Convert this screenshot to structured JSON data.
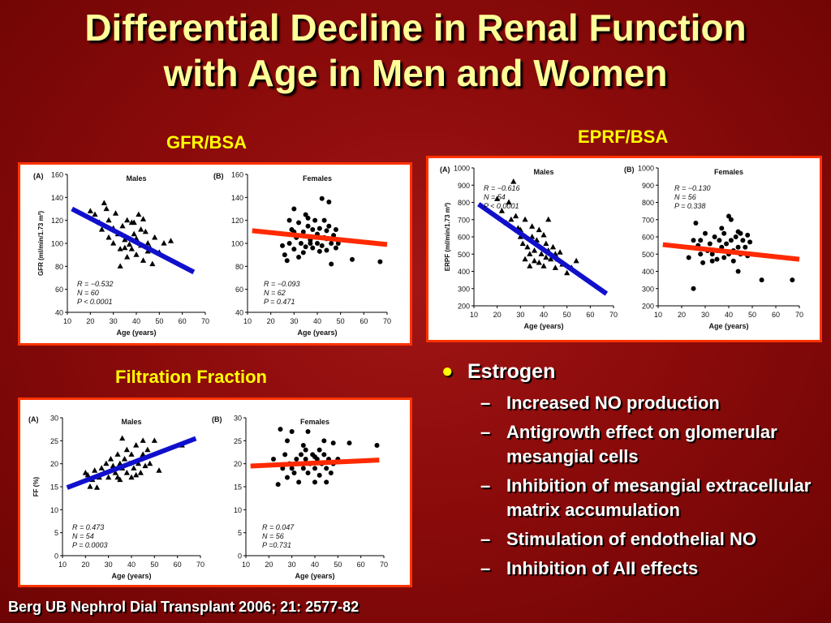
{
  "slide": {
    "title_line1": "Differential Decline in Renal Function",
    "title_line2": "with Age in Men and Women",
    "gfr_label": "GFR/BSA",
    "eprf_label": "EPRF/BSA",
    "ff_label": "Filtration Fraction",
    "citation": "Berg UB Nephrol Dial Transplant 2006; 21: 2577-82"
  },
  "bullets": {
    "main": "Estrogen",
    "subs": [
      "Increased NO production",
      "Antigrowth effect on glomerular mesangial cells",
      "Inhibition of mesangial extracellular matrix accumulation",
      "Stimulation of endothelial NO",
      "Inhibition of AII effects"
    ]
  },
  "colors": {
    "male_fit": "#1010cc",
    "female_fit": "#ff2a00",
    "accent": "#ffff00",
    "border": "#ff3300"
  },
  "chart_data": [
    {
      "type": "scatter",
      "panel": "(A)",
      "title": "Males",
      "marker": "triangle",
      "xlabel": "Age (years)",
      "ylabel": "GFR (ml/min/1.73 m²)",
      "xlim": [
        10,
        70
      ],
      "ylim": [
        40,
        160
      ],
      "xticks": [
        10,
        20,
        30,
        40,
        50,
        60,
        70
      ],
      "yticks": [
        40,
        60,
        80,
        100,
        120,
        140,
        160
      ],
      "stats": [
        "R = −0.532",
        "N = 60",
        "P < 0.0001"
      ],
      "fit": {
        "x": [
          12,
          65
        ],
        "y": [
          130,
          75
        ]
      },
      "points": [
        [
          20,
          128
        ],
        [
          22,
          125
        ],
        [
          24,
          118
        ],
        [
          25,
          112
        ],
        [
          26,
          135
        ],
        [
          27,
          130
        ],
        [
          28,
          120
        ],
        [
          28,
          105
        ],
        [
          30,
          113
        ],
        [
          30,
          100
        ],
        [
          31,
          126
        ],
        [
          32,
          108
        ],
        [
          33,
          95
        ],
        [
          33,
          80
        ],
        [
          34,
          115
        ],
        [
          35,
          103
        ],
        [
          36,
          120
        ],
        [
          36,
          88
        ],
        [
          37,
          99
        ],
        [
          38,
          118
        ],
        [
          38,
          95
        ],
        [
          39,
          108
        ],
        [
          40,
          90
        ],
        [
          40,
          104
        ],
        [
          41,
          125
        ],
        [
          42,
          98
        ],
        [
          43,
          121
        ],
        [
          43,
          85
        ],
        [
          44,
          110
        ],
        [
          45,
          100
        ],
        [
          45,
          93
        ],
        [
          46,
          96
        ],
        [
          47,
          82
        ],
        [
          48,
          105
        ],
        [
          50,
          92
        ],
        [
          52,
          100
        ],
        [
          55,
          102
        ],
        [
          35,
          96
        ],
        [
          39,
          118
        ],
        [
          42,
          112
        ]
      ]
    },
    {
      "type": "scatter",
      "panel": "(B)",
      "title": "Females",
      "marker": "circle",
      "xlabel": "Age (years)",
      "xlim": [
        10,
        70
      ],
      "ylim": [
        40,
        160
      ],
      "xticks": [
        10,
        20,
        30,
        40,
        50,
        60,
        70
      ],
      "yticks": [
        40,
        60,
        80,
        100,
        120,
        140,
        160
      ],
      "stats": [
        "R = −0.093",
        "N = 62",
        "P = 0.471"
      ],
      "fit": {
        "x": [
          12,
          70
        ],
        "y": [
          111,
          99
        ]
      },
      "points": [
        [
          25,
          98
        ],
        [
          26,
          90
        ],
        [
          27,
          85
        ],
        [
          28,
          100
        ],
        [
          28,
          120
        ],
        [
          29,
          112
        ],
        [
          30,
          95
        ],
        [
          30,
          130
        ],
        [
          31,
          105
        ],
        [
          32,
          118
        ],
        [
          32,
          88
        ],
        [
          33,
          100
        ],
        [
          34,
          110
        ],
        [
          34,
          92
        ],
        [
          35,
          125
        ],
        [
          35,
          97
        ],
        [
          36,
          115
        ],
        [
          37,
          103
        ],
        [
          37,
          100
        ],
        [
          38,
          112
        ],
        [
          38,
          96
        ],
        [
          39,
          120
        ],
        [
          40,
          108
        ],
        [
          40,
          100
        ],
        [
          41,
          113
        ],
        [
          41,
          93
        ],
        [
          42,
          139
        ],
        [
          42,
          98
        ],
        [
          43,
          120
        ],
        [
          43,
          105
        ],
        [
          44,
          111
        ],
        [
          44,
          94
        ],
        [
          45,
          115
        ],
        [
          45,
          136
        ],
        [
          46,
          100
        ],
        [
          46,
          82
        ],
        [
          47,
          107
        ],
        [
          48,
          112
        ],
        [
          48,
          96
        ],
        [
          49,
          100
        ],
        [
          55,
          86
        ],
        [
          67,
          84
        ],
        [
          30,
          110
        ],
        [
          36,
          122
        ],
        [
          44,
          104
        ]
      ]
    },
    {
      "type": "scatter",
      "panel": "(A)",
      "title": "Males",
      "marker": "triangle",
      "xlabel": "Age (years)",
      "ylabel": "ERPF (ml/min/1.73 m²)",
      "xlim": [
        10,
        70
      ],
      "ylim": [
        200,
        1000
      ],
      "xticks": [
        10,
        20,
        30,
        40,
        50,
        60,
        70
      ],
      "yticks": [
        200,
        300,
        400,
        500,
        600,
        700,
        800,
        900,
        1000
      ],
      "stats": [
        "R = −0.616",
        "N = 54",
        "P < 0.0001"
      ],
      "fit": {
        "x": [
          12,
          67
        ],
        "y": [
          790,
          270
        ]
      },
      "points": [
        [
          20,
          820
        ],
        [
          22,
          750
        ],
        [
          24,
          680
        ],
        [
          25,
          800
        ],
        [
          27,
          920
        ],
        [
          28,
          720
        ],
        [
          29,
          650
        ],
        [
          30,
          600
        ],
        [
          31,
          560
        ],
        [
          32,
          700
        ],
        [
          32,
          470
        ],
        [
          33,
          540
        ],
        [
          34,
          500
        ],
        [
          34,
          430
        ],
        [
          35,
          600
        ],
        [
          36,
          520
        ],
        [
          36,
          460
        ],
        [
          37,
          580
        ],
        [
          38,
          640
        ],
        [
          38,
          450
        ],
        [
          39,
          500
        ],
        [
          40,
          610
        ],
        [
          40,
          430
        ],
        [
          41,
          560
        ],
        [
          41,
          480
        ],
        [
          42,
          700
        ],
        [
          42,
          520
        ],
        [
          43,
          470
        ],
        [
          44,
          540
        ],
        [
          45,
          500
        ],
        [
          45,
          420
        ],
        [
          46,
          470
        ],
        [
          47,
          510
        ],
        [
          48,
          440
        ],
        [
          50,
          390
        ],
        [
          52,
          420
        ],
        [
          54,
          460
        ],
        [
          30,
          640
        ],
        [
          26,
          700
        ],
        [
          35,
          660
        ]
      ]
    },
    {
      "type": "scatter",
      "panel": "(B)",
      "title": "Females",
      "marker": "circle",
      "xlabel": "Age (years)",
      "xlim": [
        10,
        70
      ],
      "ylim": [
        200,
        1000
      ],
      "xticks": [
        10,
        20,
        30,
        40,
        50,
        60,
        70
      ],
      "yticks": [
        200,
        300,
        400,
        500,
        600,
        700,
        800,
        900,
        1000
      ],
      "stats": [
        "R = −0.130",
        "N = 56",
        "P = 0.338"
      ],
      "fit": {
        "x": [
          12,
          70
        ],
        "y": [
          555,
          470
        ]
      },
      "points": [
        [
          23,
          480
        ],
        [
          25,
          300
        ],
        [
          25,
          580
        ],
        [
          26,
          680
        ],
        [
          27,
          550
        ],
        [
          28,
          500
        ],
        [
          28,
          580
        ],
        [
          29,
          450
        ],
        [
          30,
          620
        ],
        [
          31,
          520
        ],
        [
          32,
          560
        ],
        [
          33,
          500
        ],
        [
          33,
          460
        ],
        [
          34,
          600
        ],
        [
          35,
          520
        ],
        [
          35,
          470
        ],
        [
          36,
          580
        ],
        [
          37,
          540
        ],
        [
          38,
          480
        ],
        [
          38,
          620
        ],
        [
          39,
          560
        ],
        [
          40,
          500
        ],
        [
          40,
          720
        ],
        [
          41,
          700
        ],
        [
          41,
          580
        ],
        [
          42,
          520
        ],
        [
          42,
          460
        ],
        [
          43,
          600
        ],
        [
          44,
          540
        ],
        [
          44,
          400
        ],
        [
          45,
          620
        ],
        [
          45,
          500
        ],
        [
          46,
          580
        ],
        [
          47,
          540
        ],
        [
          48,
          610
        ],
        [
          48,
          490
        ],
        [
          49,
          570
        ],
        [
          54,
          350
        ],
        [
          67,
          350
        ],
        [
          44,
          630
        ],
        [
          37,
          650
        ]
      ]
    },
    {
      "type": "scatter",
      "panel": "(A)",
      "title": "Males",
      "marker": "triangle",
      "xlabel": "Age (years)",
      "ylabel": "FF (%)",
      "xlim": [
        10,
        70
      ],
      "ylim": [
        0,
        30
      ],
      "xticks": [
        10,
        20,
        30,
        40,
        50,
        60,
        70
      ],
      "yticks": [
        0,
        5,
        10,
        15,
        20,
        25,
        30
      ],
      "stats": [
        "R = 0.473",
        "N = 54",
        "P = 0.0003"
      ],
      "fit": {
        "x": [
          12,
          68
        ],
        "y": [
          14.8,
          25.5
        ]
      },
      "points": [
        [
          20,
          18
        ],
        [
          21,
          17.5
        ],
        [
          22,
          15
        ],
        [
          23,
          16.5
        ],
        [
          24,
          18.5
        ],
        [
          25,
          14.8
        ],
        [
          26,
          17
        ],
        [
          27,
          19
        ],
        [
          28,
          18
        ],
        [
          29,
          20
        ],
        [
          30,
          17
        ],
        [
          31,
          21
        ],
        [
          32,
          19.5
        ],
        [
          33,
          18
        ],
        [
          34,
          22
        ],
        [
          34,
          17
        ],
        [
          35,
          20
        ],
        [
          36,
          25.5
        ],
        [
          36,
          19
        ],
        [
          37,
          21
        ],
        [
          38,
          18
        ],
        [
          38,
          23
        ],
        [
          39,
          20
        ],
        [
          40,
          17
        ],
        [
          40,
          22
        ],
        [
          41,
          19
        ],
        [
          42,
          24
        ],
        [
          42,
          17.5
        ],
        [
          43,
          20
        ],
        [
          44,
          21
        ],
        [
          44,
          18
        ],
        [
          45,
          22
        ],
        [
          46,
          19.5
        ],
        [
          47,
          23
        ],
        [
          48,
          20
        ],
        [
          50,
          25
        ],
        [
          52,
          18.5
        ],
        [
          62,
          24
        ],
        [
          35,
          16.5
        ],
        [
          45,
          25
        ]
      ]
    },
    {
      "type": "scatter",
      "panel": "(B)",
      "title": "Females",
      "marker": "circle",
      "xlabel": "Age (years)",
      "xlim": [
        10,
        70
      ],
      "ylim": [
        0,
        30
      ],
      "xticks": [
        10,
        20,
        30,
        40,
        50,
        60,
        70
      ],
      "yticks": [
        0,
        5,
        10,
        15,
        20,
        25,
        30
      ],
      "stats": [
        "R = 0.047",
        "N = 56",
        "P =0.731"
      ],
      "fit": {
        "x": [
          12,
          68
        ],
        "y": [
          19.5,
          20.8
        ]
      },
      "points": [
        [
          22,
          21
        ],
        [
          24,
          15.5
        ],
        [
          25,
          27.5
        ],
        [
          26,
          19
        ],
        [
          27,
          22
        ],
        [
          28,
          17
        ],
        [
          28,
          25
        ],
        [
          29,
          20
        ],
        [
          30,
          27
        ],
        [
          31,
          18
        ],
        [
          32,
          21
        ],
        [
          33,
          16
        ],
        [
          34,
          22
        ],
        [
          35,
          19
        ],
        [
          35,
          24
        ],
        [
          36,
          21
        ],
        [
          37,
          18
        ],
        [
          37,
          27
        ],
        [
          38,
          20
        ],
        [
          39,
          22
        ],
        [
          40,
          19
        ],
        [
          40,
          16
        ],
        [
          41,
          21
        ],
        [
          42,
          23
        ],
        [
          42,
          17.5
        ],
        [
          43,
          20
        ],
        [
          44,
          22
        ],
        [
          44,
          25
        ],
        [
          45,
          19
        ],
        [
          45,
          16
        ],
        [
          46,
          21
        ],
        [
          47,
          18
        ],
        [
          48,
          20
        ],
        [
          48,
          24.5
        ],
        [
          50,
          21
        ],
        [
          55,
          24.5
        ],
        [
          67,
          24
        ],
        [
          30,
          19
        ],
        [
          40,
          21.5
        ],
        [
          36,
          23
        ]
      ]
    }
  ]
}
